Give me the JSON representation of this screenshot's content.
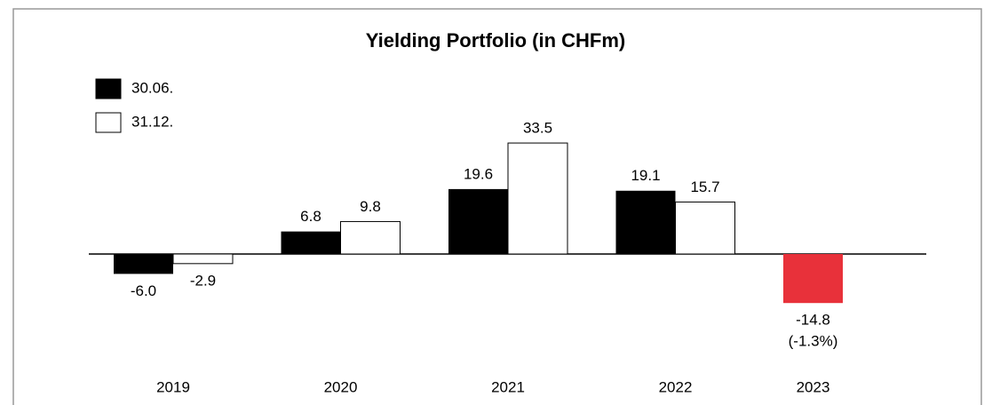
{
  "chart_data": {
    "type": "bar",
    "title": "Yielding Portfolio (in CHFm)",
    "categories": [
      "2019",
      "2020",
      "2021",
      "2022",
      "2023"
    ],
    "series": [
      {
        "name": "30.06.",
        "color": "#000000",
        "colors": [
          "#000000",
          "#000000",
          "#000000",
          "#000000",
          "#e8313a"
        ],
        "values": [
          -6,
          6.8,
          19.6,
          19.1,
          -14.8
        ],
        "value_labels": [
          "-6.0",
          "6.8",
          "19.6",
          "19.1",
          "-14.8"
        ]
      },
      {
        "name": "31.12.",
        "color": "#ffffff",
        "values": [
          -2.9,
          9.8,
          33.5,
          15.7,
          null
        ],
        "value_labels": [
          "-2.9",
          "9.8",
          "33.5",
          "15.7",
          null
        ]
      }
    ],
    "annotations": [
      {
        "text": "(-1.3%)"
      }
    ]
  }
}
